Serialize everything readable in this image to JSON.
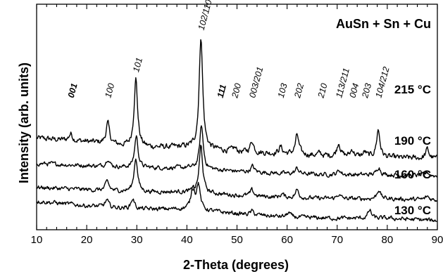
{
  "chart_data": {
    "type": "line",
    "title": "AuSn + Sn + Cu",
    "xlabel": "2-Theta (degrees)",
    "ylabel": "Intensity (arb. units)",
    "xlim": [
      10,
      90
    ],
    "x_ticks": [
      "10",
      "20",
      "30",
      "40",
      "50",
      "60",
      "70",
      "80",
      "90"
    ],
    "grid": false,
    "series": [
      {
        "name": "215 °C",
        "baseline": 6.5,
        "noise": 0.4,
        "background": [
          [
            10,
            0
          ],
          [
            20,
            -0.3
          ],
          [
            30,
            -0.8
          ],
          [
            40,
            -0.8
          ],
          [
            50,
            -1.2
          ],
          [
            60,
            -1.4
          ],
          [
            70,
            -1.6
          ],
          [
            80,
            -1.7
          ],
          [
            90,
            -1.8
          ]
        ],
        "peaks": [
          [
            16.8,
            0.6
          ],
          [
            24.2,
            1.8
          ],
          [
            29.8,
            6.0
          ],
          [
            42.8,
            9.8
          ],
          [
            49.5,
            0.3
          ],
          [
            53.0,
            1.0
          ],
          [
            58.7,
            0.6
          ],
          [
            62.0,
            1.7
          ],
          [
            66.5,
            0.2
          ],
          [
            70.3,
            1.2
          ],
          [
            73.0,
            0.6
          ],
          [
            75.5,
            0.4
          ],
          [
            78.2,
            2.4
          ],
          [
            88.0,
            0.8
          ]
        ]
      },
      {
        "name": "190 °C",
        "baseline": 4.3,
        "noise": 0.3,
        "background": [
          [
            10,
            0
          ],
          [
            20,
            -0.2
          ],
          [
            30,
            -0.4
          ],
          [
            40,
            -0.4
          ],
          [
            50,
            -0.7
          ],
          [
            60,
            -0.9
          ],
          [
            70,
            -1.0
          ],
          [
            80,
            -1.0
          ],
          [
            90,
            -1.1
          ]
        ],
        "peaks": [
          [
            24.2,
            0.7
          ],
          [
            29.9,
            2.8
          ],
          [
            42.9,
            3.8
          ],
          [
            53.1,
            0.5
          ],
          [
            62.0,
            0.5
          ],
          [
            70.4,
            0.4
          ],
          [
            78.3,
            0.7
          ],
          [
            88.0,
            0.3
          ]
        ]
      },
      {
        "name": "160 °C",
        "baseline": 2.2,
        "noise": 0.3,
        "background": [
          [
            10,
            0
          ],
          [
            20,
            -0.2
          ],
          [
            30,
            -0.4
          ],
          [
            40,
            -0.4
          ],
          [
            50,
            -0.7
          ],
          [
            60,
            -0.9
          ],
          [
            70,
            -1.0
          ],
          [
            80,
            -1.0
          ],
          [
            90,
            -1.1
          ]
        ],
        "peaks": [
          [
            24.1,
            0.8
          ],
          [
            29.8,
            3.0
          ],
          [
            42.8,
            4.1
          ],
          [
            53.0,
            0.5
          ],
          [
            59.0,
            0.3
          ],
          [
            62.0,
            0.7
          ],
          [
            70.3,
            0.4
          ],
          [
            78.3,
            0.8
          ],
          [
            88.0,
            0.3
          ]
        ]
      },
      {
        "name": "130 °C",
        "baseline": 0.4,
        "noise": 0.3,
        "background": [
          [
            10,
            0.6
          ],
          [
            20,
            0.2
          ],
          [
            30,
            -0.1
          ],
          [
            40,
            -0.1
          ],
          [
            50,
            -0.5
          ],
          [
            60,
            -0.8
          ],
          [
            70,
            -0.9
          ],
          [
            80,
            -0.9
          ],
          [
            90,
            -1.1
          ]
        ],
        "peaks": [
          [
            24.0,
            0.6
          ],
          [
            29.2,
            0.9
          ],
          [
            41.2,
            2.0
          ],
          [
            42.3,
            2.2
          ],
          [
            53.0,
            0.3
          ],
          [
            60.3,
            0.4
          ],
          [
            76.5,
            0.7
          ]
        ]
      }
    ],
    "peak_labels": [
      {
        "text": "001",
        "x": 16.8,
        "bold": true
      },
      {
        "text": "100",
        "x": 24.2,
        "bold": false
      },
      {
        "text": "101",
        "x": 29.8,
        "bold": false
      },
      {
        "text": "102/110",
        "x": 42.8,
        "bold": false
      },
      {
        "text": "111",
        "x": 46.6,
        "bold": true
      },
      {
        "text": "200",
        "x": 49.5,
        "bold": false
      },
      {
        "text": "003/201",
        "x": 53.0,
        "bold": false
      },
      {
        "text": "103",
        "x": 58.7,
        "bold": false
      },
      {
        "text": "202",
        "x": 62.0,
        "bold": false
      },
      {
        "text": "210",
        "x": 66.7,
        "bold": false
      },
      {
        "text": "113/211",
        "x": 70.3,
        "bold": false
      },
      {
        "text": "004",
        "x": 73.0,
        "bold": false
      },
      {
        "text": "203",
        "x": 75.5,
        "bold": false
      },
      {
        "text": "104/212",
        "x": 78.2,
        "bold": false
      }
    ],
    "series_labels": [
      "215 °C",
      "190 °C",
      "160 °C",
      "130 °C"
    ]
  }
}
